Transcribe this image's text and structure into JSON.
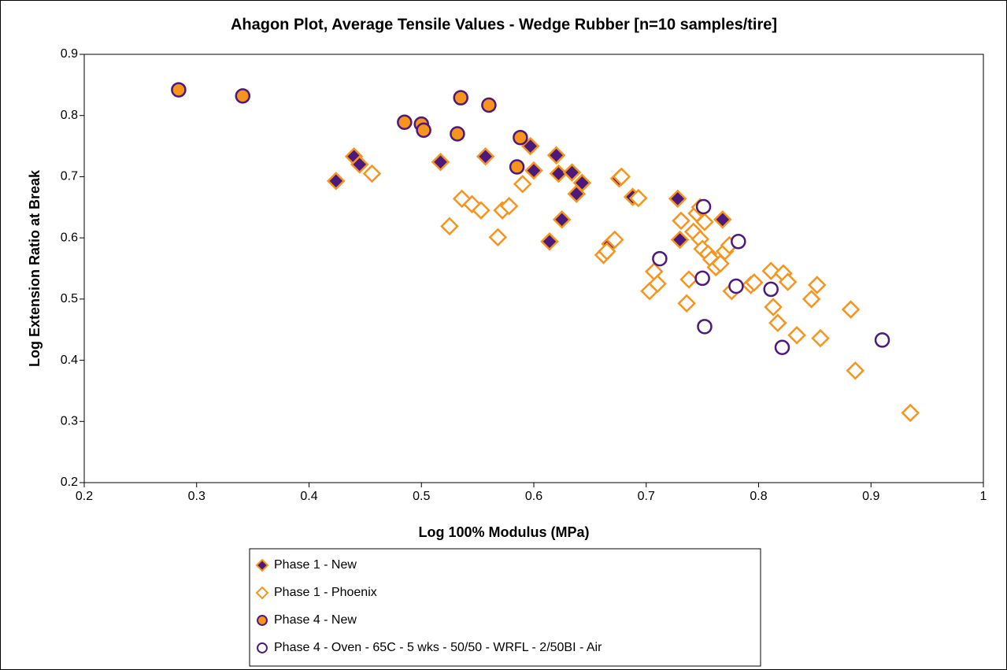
{
  "chart_data": {
    "type": "scatter",
    "title": "Ahagon Plot, Average Tensile Values - Wedge Rubber [n=10 samples/tire]",
    "x_label": "Log 100% Modulus (MPa)",
    "y_label": "Log Extension Ratio at Break",
    "xlim": [
      0.2,
      1
    ],
    "xticks": [
      0.2,
      0.3,
      0.4,
      0.5,
      0.6,
      0.7,
      0.8,
      0.9,
      1
    ],
    "ylim": [
      0.2,
      0.9
    ],
    "yticks": [
      0.2,
      0.3,
      0.4,
      0.5,
      0.6,
      0.7,
      0.8,
      0.9
    ],
    "grid": false,
    "legend": "bottom",
    "series": [
      {
        "name": "Phase 1 - New",
        "marker": "diamond",
        "fill": "#4b1a7c",
        "edge": "#f7941d",
        "x": [
          0.424,
          0.44,
          0.445,
          0.517,
          0.557,
          0.597,
          0.6,
          0.614,
          0.62,
          0.622,
          0.625,
          0.634,
          0.638,
          0.643,
          0.668,
          0.676,
          0.688,
          0.728,
          0.73,
          0.768
        ],
        "y": [
          0.693,
          0.733,
          0.72,
          0.724,
          0.733,
          0.75,
          0.71,
          0.594,
          0.735,
          0.705,
          0.63,
          0.707,
          0.672,
          0.69,
          0.59,
          0.697,
          0.667,
          0.664,
          0.597,
          0.63
        ]
      },
      {
        "name": "Phase 1 - Phoenix",
        "marker": "diamond",
        "fill": "#ffffff",
        "edge": "#f7941d",
        "x": [
          0.456,
          0.525,
          0.536,
          0.545,
          0.553,
          0.568,
          0.572,
          0.578,
          0.59,
          0.662,
          0.665,
          0.672,
          0.678,
          0.693,
          0.703,
          0.707,
          0.71,
          0.731,
          0.736,
          0.738,
          0.742,
          0.745,
          0.748,
          0.748,
          0.75,
          0.752,
          0.755,
          0.758,
          0.762,
          0.766,
          0.77,
          0.774,
          0.776,
          0.793,
          0.796,
          0.811,
          0.813,
          0.817,
          0.822,
          0.826,
          0.834,
          0.847,
          0.852,
          0.855,
          0.882,
          0.886,
          0.935
        ],
        "y": [
          0.705,
          0.619,
          0.664,
          0.655,
          0.645,
          0.601,
          0.645,
          0.652,
          0.688,
          0.572,
          0.578,
          0.597,
          0.7,
          0.665,
          0.513,
          0.545,
          0.525,
          0.628,
          0.493,
          0.532,
          0.61,
          0.64,
          0.65,
          0.598,
          0.582,
          0.626,
          0.574,
          0.565,
          0.552,
          0.558,
          0.578,
          0.588,
          0.513,
          0.523,
          0.527,
          0.546,
          0.487,
          0.461,
          0.542,
          0.528,
          0.441,
          0.5,
          0.523,
          0.436,
          0.483,
          0.383,
          0.314
        ]
      },
      {
        "name": "Phase 4 - New",
        "marker": "circle",
        "fill": "#f7941d",
        "edge": "#4b1a7c",
        "x": [
          0.284,
          0.341,
          0.485,
          0.5,
          0.502,
          0.532,
          0.535,
          0.56,
          0.585,
          0.588
        ],
        "y": [
          0.842,
          0.832,
          0.789,
          0.786,
          0.776,
          0.77,
          0.829,
          0.817,
          0.716,
          0.764
        ]
      },
      {
        "name": "Phase 4 - Oven - 65C - 5 wks - 50/50 - WRFL - 2/50BI - Air",
        "marker": "circle",
        "fill": "#ffffff",
        "edge": "#4b1a7c",
        "x": [
          0.712,
          0.75,
          0.751,
          0.752,
          0.78,
          0.782,
          0.811,
          0.821,
          0.91
        ],
        "y": [
          0.566,
          0.534,
          0.651,
          0.455,
          0.521,
          0.594,
          0.516,
          0.421,
          0.433
        ]
      }
    ]
  }
}
